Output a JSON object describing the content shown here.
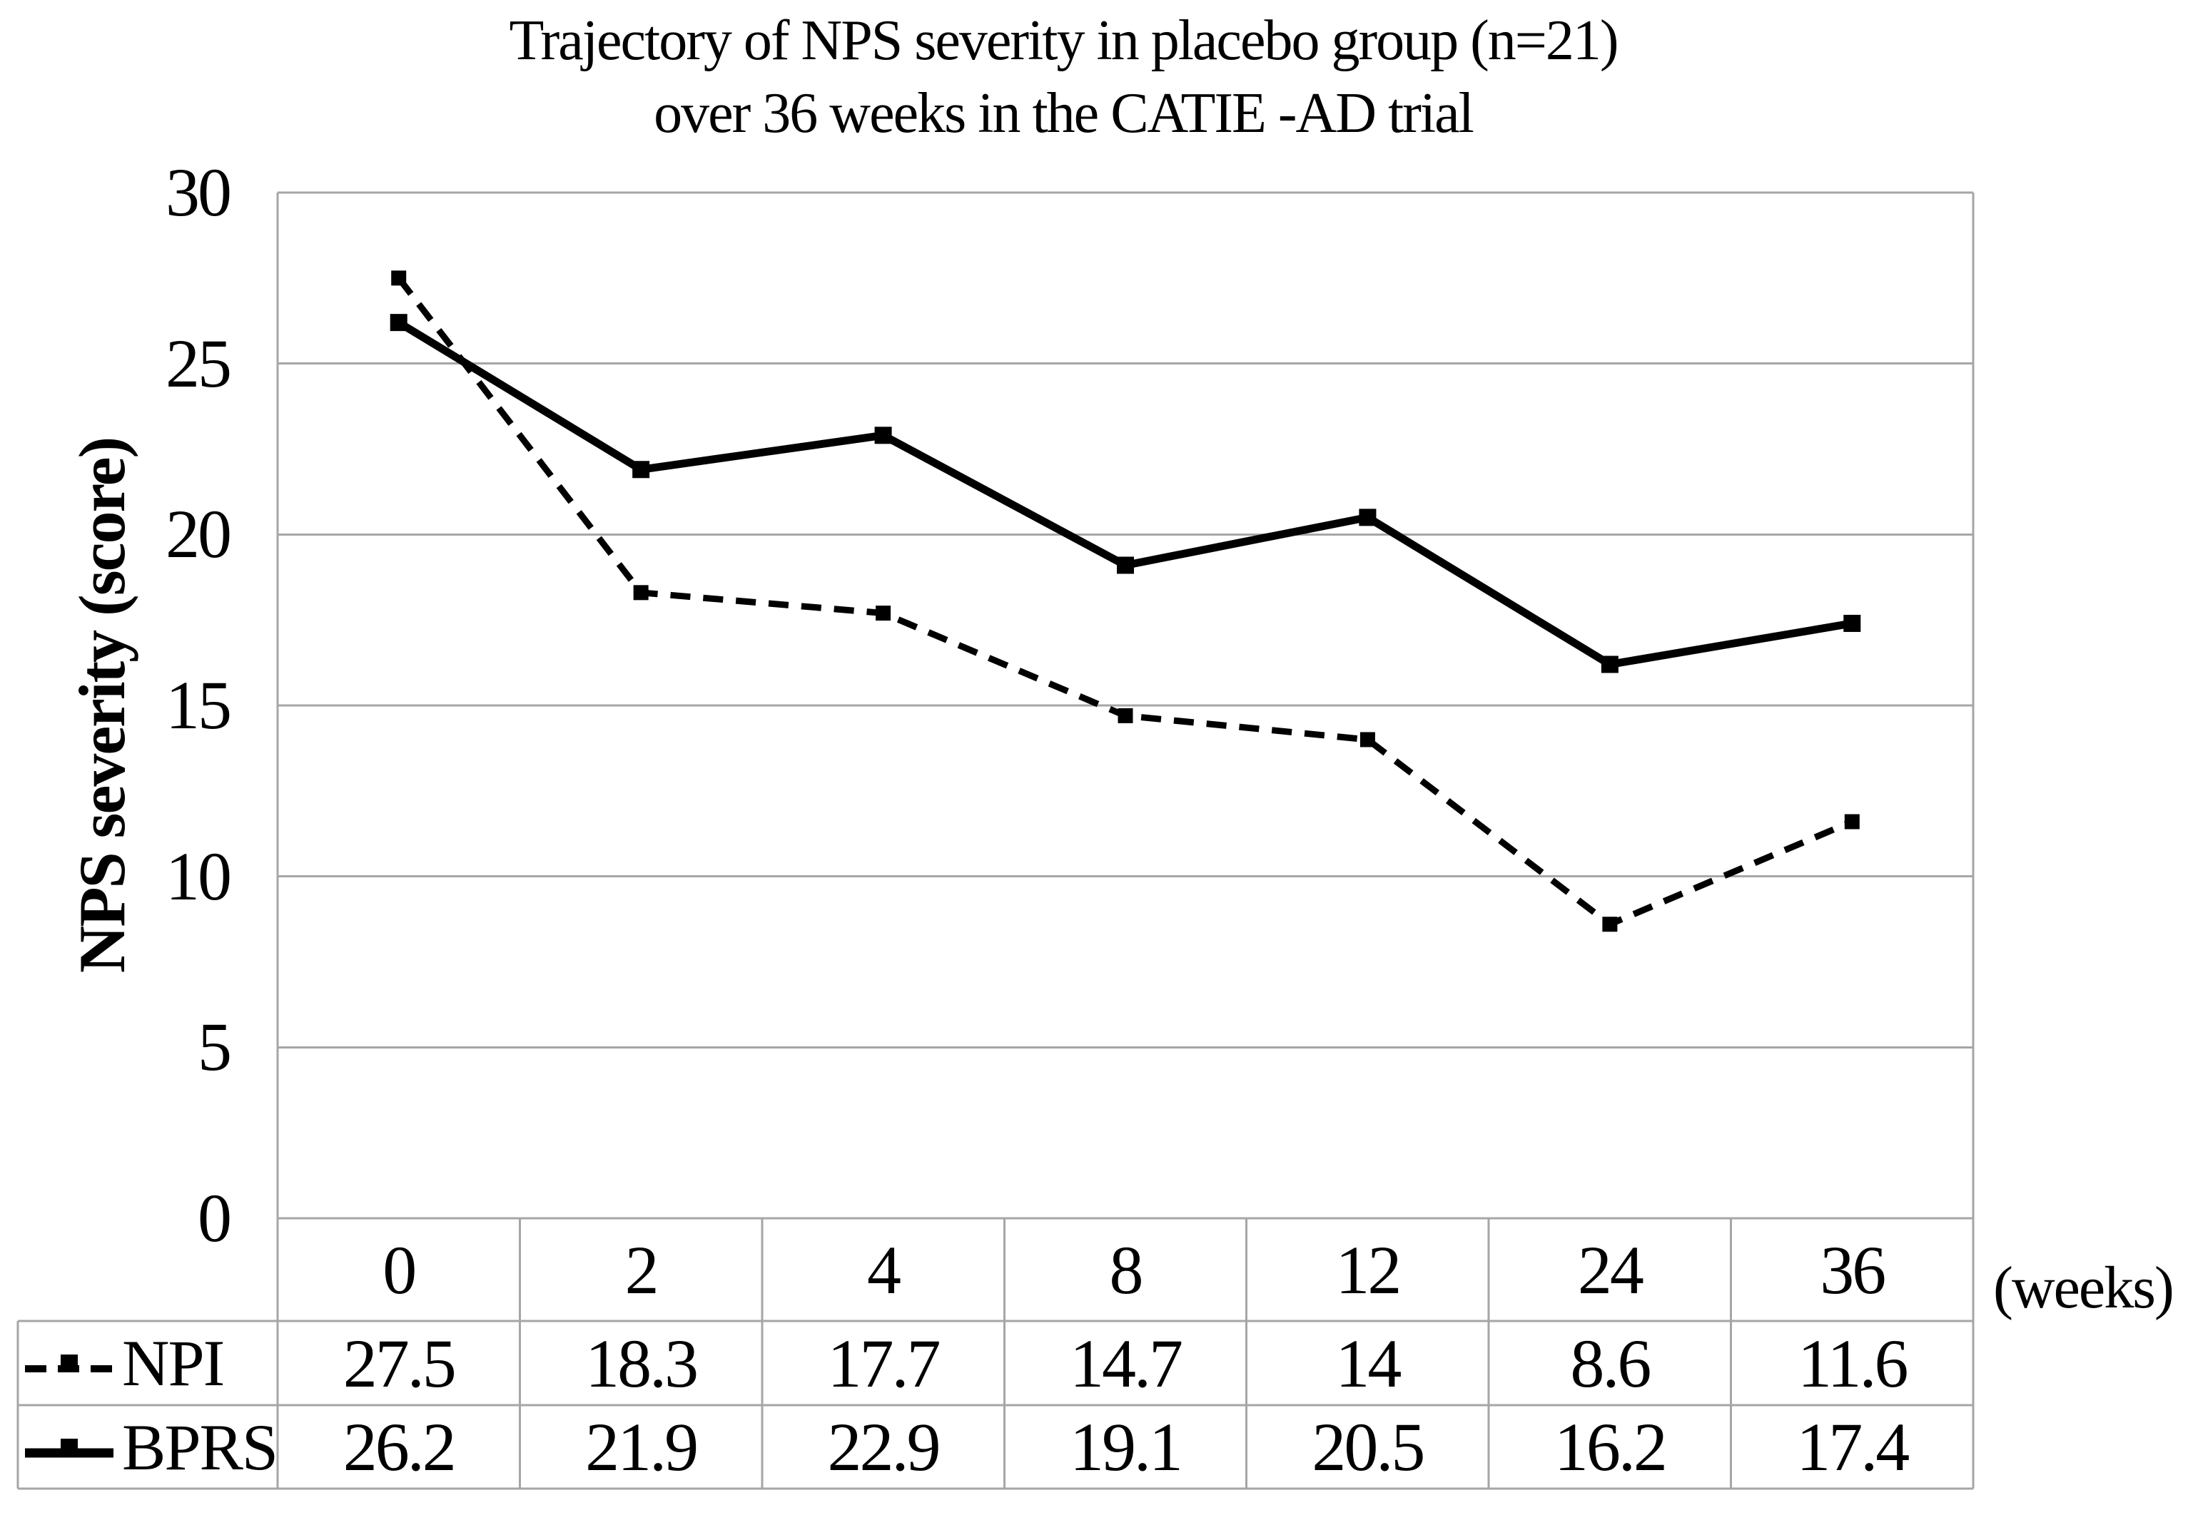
{
  "title": {
    "line1": "Trajectory of NPS severity in placebo group (n=21)",
    "line2": "over 36 weeks in the CATIE -AD trial"
  },
  "y_axis": {
    "title": "NPS severity (score)",
    "ticks": [
      30,
      25,
      20,
      15,
      10,
      5,
      0
    ],
    "max": 30,
    "min": 0
  },
  "x_axis": {
    "unit_label": "(weeks)",
    "categories": [
      "0",
      "2",
      "4",
      "8",
      "12",
      "24",
      "36"
    ]
  },
  "chart_data": {
    "type": "line",
    "title": "Trajectory of NPS severity in placebo group (n=21) over 36 weeks in the CATIE -AD trial",
    "xlabel": "(weeks)",
    "ylabel": "NPS severity (score)",
    "ylim": [
      0,
      30
    ],
    "grid": "horizontal",
    "legend_position": "data-table-left",
    "categories": [
      0,
      2,
      4,
      8,
      12,
      24,
      36
    ],
    "series": [
      {
        "name": "NPI",
        "style": "dashed",
        "marker": "square",
        "values": [
          27.5,
          18.3,
          17.7,
          14.7,
          14,
          8.6,
          11.6
        ]
      },
      {
        "name": "BPRS",
        "style": "solid",
        "marker": "square",
        "values": [
          26.2,
          21.9,
          22.9,
          19.1,
          20.5,
          16.2,
          17.4
        ]
      }
    ]
  },
  "colors": {
    "series": "#000000",
    "grid": "#a6a6a6",
    "text": "#000000",
    "background": "#ffffff"
  }
}
